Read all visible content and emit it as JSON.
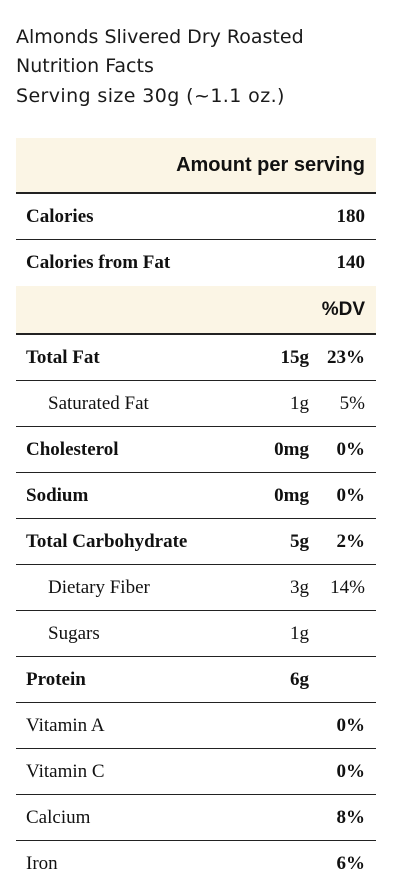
{
  "title": {
    "product": "Almonds Slivered Dry Roasted",
    "subtitle": "Nutrition Facts",
    "serving": "Serving size 30g (~1.1 oz.)"
  },
  "header": {
    "amount_per_serving": "Amount per serving",
    "dv_label": "%DV"
  },
  "calories": [
    {
      "name": "Calories",
      "value": "180"
    },
    {
      "name": "Calories from Fat",
      "value": "140"
    }
  ],
  "nutrients": [
    {
      "name": "Total Fat",
      "amount": "15g",
      "dv": "23%"
    },
    {
      "name": "Saturated Fat",
      "amount": "1g",
      "dv": "5%"
    },
    {
      "name": "Cholesterol",
      "amount": "0mg",
      "dv": "0%"
    },
    {
      "name": "Sodium",
      "amount": "0mg",
      "dv": "0%"
    },
    {
      "name": "Total Carbohydrate",
      "amount": "5g",
      "dv": "2%"
    },
    {
      "name": "Dietary Fiber",
      "amount": "3g",
      "dv": "14%"
    },
    {
      "name": "Sugars",
      "amount": "1g",
      "dv": ""
    },
    {
      "name": "Protein",
      "amount": "6g",
      "dv": ""
    },
    {
      "name": "Vitamin A",
      "amount": "",
      "dv": "0%"
    },
    {
      "name": "Vitamin C",
      "amount": "",
      "dv": "0%"
    },
    {
      "name": "Calcium",
      "amount": "",
      "dv": "8%"
    },
    {
      "name": "Iron",
      "amount": "",
      "dv": "6%"
    }
  ]
}
